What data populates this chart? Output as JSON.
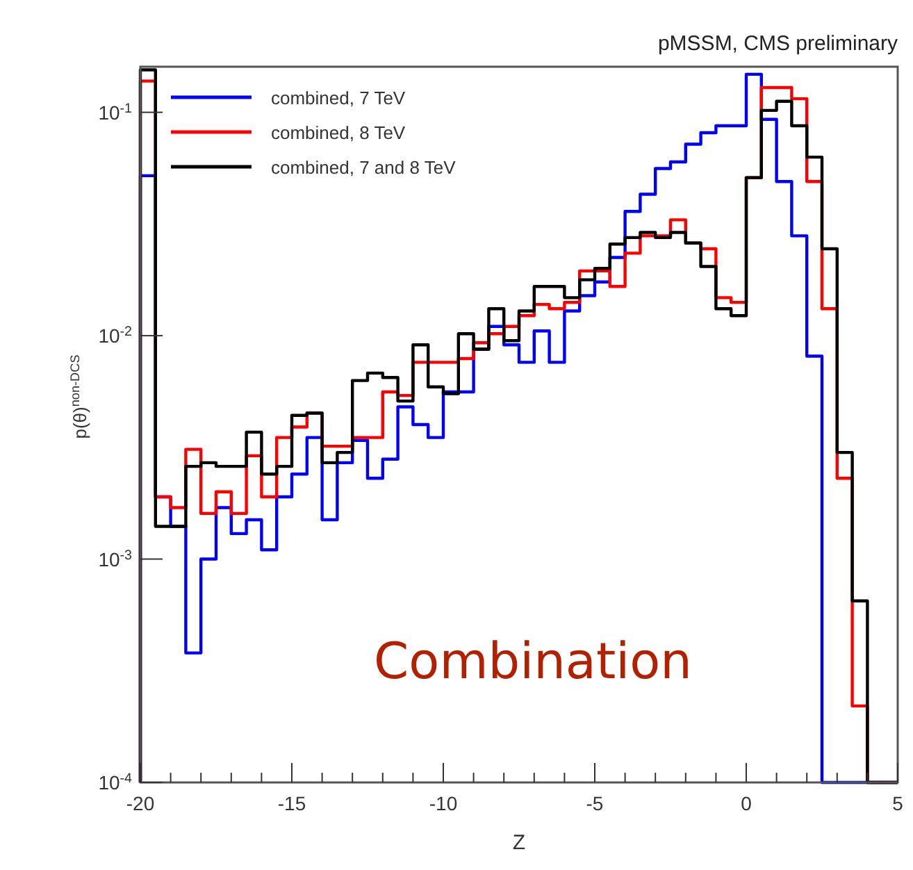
{
  "chart_data": {
    "type": "histogram",
    "title": "pMSSM, CMS preliminary",
    "xlabel": "Z",
    "ylabel": "p(θ)$^{non-DCS}$",
    "annotations": [
      "Combination"
    ],
    "bins": [
      -20,
      -19.5,
      -19,
      -18.5,
      -18,
      -17.5,
      -17,
      -16.5,
      -16,
      -15.5,
      -15,
      -14.5,
      -14,
      -13.5,
      -13,
      -12.5,
      -12,
      -11.5,
      -11,
      -10.5,
      -10,
      -9.5,
      -9,
      -8.5,
      -8,
      -7.5,
      -7,
      -6.5,
      -6,
      -5.5,
      -5,
      -4.5,
      -4,
      -3.5,
      -3,
      -2.5,
      -2,
      -1.5,
      -1,
      -0.5,
      0,
      0.5,
      1,
      1.5,
      2,
      2.5,
      3,
      3.5,
      4,
      4.5,
      5
    ],
    "series": [
      {
        "name": "combined, 7 TeV",
        "color": "#0000ff",
        "values": [
          0.052,
          0.0019,
          0.0014,
          0.00038,
          0.001,
          0.0017,
          0.0013,
          0.0015,
          0.0011,
          0.0019,
          0.0024,
          0.0035,
          0.0015,
          0.0027,
          0.0034,
          0.0023,
          0.0028,
          0.0048,
          0.004,
          0.0035,
          0.0056,
          0.0056,
          0.0087,
          0.011,
          0.0091,
          0.0076,
          0.0105,
          0.0076,
          0.0129,
          0.0151,
          0.0174,
          0.0224,
          0.036,
          0.043,
          0.056,
          0.06,
          0.072,
          0.081,
          0.087,
          0.087,
          0.148,
          0.093,
          0.049,
          0.028,
          0.0081,
          0.0001,
          0.0001,
          0.0001,
          0.0001,
          0.0001
        ]
      },
      {
        "name": "combined, 8 TeV",
        "color": "#ff0000",
        "values": [
          0.138,
          0.0019,
          0.0017,
          0.0031,
          0.0016,
          0.002,
          0.0016,
          0.0029,
          0.0019,
          0.0035,
          0.0039,
          0.0045,
          0.0032,
          0.0032,
          0.0035,
          0.0035,
          0.0056,
          0.0054,
          0.0076,
          0.0076,
          0.0076,
          0.0079,
          0.0093,
          0.0102,
          0.011,
          0.0123,
          0.0138,
          0.0132,
          0.0141,
          0.0195,
          0.0195,
          0.0166,
          0.0234,
          0.028,
          0.028,
          0.033,
          0.026,
          0.0245,
          0.0148,
          0.0141,
          0.051,
          0.129,
          0.129,
          0.115,
          0.049,
          0.0132,
          0.0023,
          0.00022,
          0.0001,
          0.0001
        ]
      },
      {
        "name": "combined, 7 and 8 TeV",
        "color": "#000000",
        "values": [
          0.155,
          0.0014,
          0.0014,
          0.0026,
          0.0027,
          0.0026,
          0.0026,
          0.0037,
          0.0024,
          0.0026,
          0.0044,
          0.0045,
          0.0027,
          0.003,
          0.0063,
          0.0068,
          0.0065,
          0.0051,
          0.0091,
          0.0059,
          0.0055,
          0.0102,
          0.0087,
          0.0132,
          0.0095,
          0.0129,
          0.0166,
          0.0166,
          0.0148,
          0.0178,
          0.02,
          0.0257,
          0.0275,
          0.029,
          0.0275,
          0.029,
          0.026,
          0.0204,
          0.0132,
          0.0123,
          0.051,
          0.102,
          0.112,
          0.087,
          0.063,
          0.0245,
          0.003,
          0.00065,
          0.0001,
          0.0001
        ]
      }
    ],
    "xlim": [
      -20,
      5
    ],
    "xticks": [
      -20,
      {
        "value": -19,
        "label": null
      },
      {
        "value": -18,
        "label": null
      },
      {
        "value": -17,
        "label": null
      },
      {
        "value": -16,
        "label": null
      },
      -15,
      {
        "value": -14,
        "label": null
      },
      {
        "value": -13,
        "label": null
      },
      {
        "value": -12,
        "label": null
      },
      {
        "value": -11,
        "label": null
      },
      -10,
      {
        "value": -9,
        "label": null
      },
      {
        "value": -8,
        "label": null
      },
      {
        "value": -7,
        "label": null
      },
      {
        "value": -6,
        "label": null
      },
      -5,
      {
        "value": -4,
        "label": null
      },
      {
        "value": -3,
        "label": null
      },
      {
        "value": -2,
        "label": null
      },
      {
        "value": -1,
        "label": null
      },
      0,
      {
        "value": 1,
        "label": null
      },
      {
        "value": 2,
        "label": null
      },
      {
        "value": 3,
        "label": null
      },
      {
        "value": 4,
        "label": null
      },
      5
    ],
    "ylim": [
      0.0001,
      0.16
    ],
    "yticks": [
      {
        "value": 0.0001,
        "label": "10$^{-4}$"
      },
      {
        "value": 0.001,
        "label": "10$^{-3}$"
      },
      {
        "value": 0.01,
        "label": "10$^{-2}$"
      },
      {
        "value": 0.1,
        "label": "10$^{-1}$"
      }
    ],
    "log": "y",
    "grid": false,
    "legend": "top left",
    "line_style": "solid"
  }
}
